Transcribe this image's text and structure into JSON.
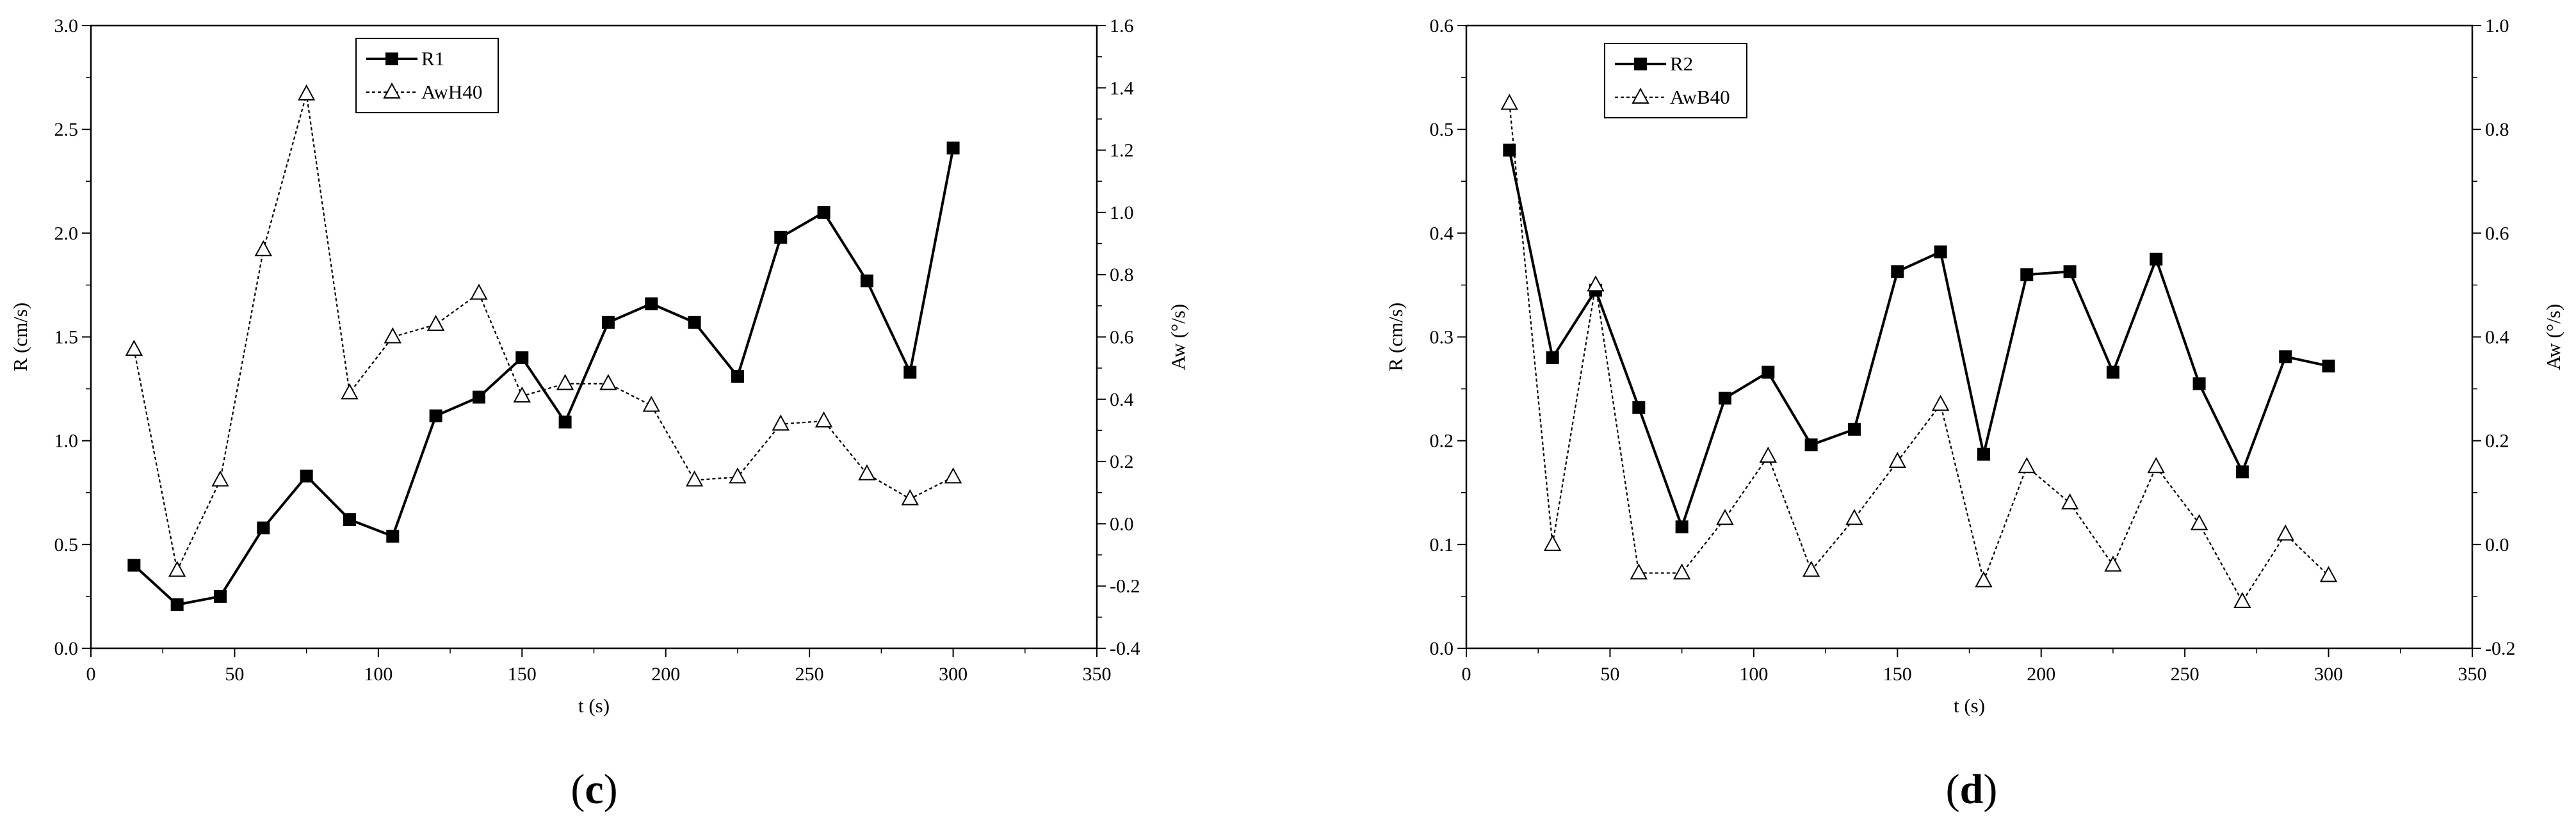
{
  "chart_data": [
    {
      "type": "line",
      "panel_label": "c",
      "xlabel": "t (s)",
      "ylabel": "R  (cm/s)",
      "y2label": "Aw (°/s)",
      "xlim": [
        0,
        350
      ],
      "ylim": [
        0,
        3.0
      ],
      "y2lim": [
        -0.4,
        1.6
      ],
      "x_ticks": [
        "0",
        "50",
        "100",
        "150",
        "200",
        "250",
        "300",
        "350"
      ],
      "y_ticks": [
        "0.0",
        "0.5",
        "1.0",
        "1.5",
        "2.0",
        "2.5",
        "3.0"
      ],
      "y2_ticks": [
        "-0.4",
        "-0.2",
        "0.0",
        "0.2",
        "0.4",
        "0.6",
        "0.8",
        "1.0",
        "1.2",
        "1.4",
        "1.6"
      ],
      "legend_position": "top-left",
      "series": [
        {
          "name": "R1",
          "axis": "left",
          "marker": "filled-square",
          "line": "solid",
          "x": [
            15,
            30,
            45,
            60,
            75,
            90,
            105,
            120,
            135,
            150,
            165,
            180,
            195,
            210,
            225,
            240,
            255,
            270,
            285,
            300
          ],
          "y": [
            0.4,
            0.21,
            0.25,
            0.58,
            0.83,
            0.62,
            0.54,
            1.12,
            1.21,
            1.4,
            1.09,
            1.57,
            1.66,
            1.57,
            1.31,
            1.98,
            2.1,
            1.77,
            1.33,
            2.41
          ]
        },
        {
          "name": "AwH40",
          "axis": "right",
          "marker": "open-triangle",
          "line": "dashed",
          "x": [
            15,
            30,
            45,
            60,
            75,
            90,
            105,
            120,
            135,
            150,
            165,
            180,
            195,
            210,
            225,
            240,
            255,
            270,
            285,
            300
          ],
          "y": [
            0.56,
            -0.15,
            0.14,
            0.88,
            1.38,
            0.42,
            0.6,
            0.64,
            0.74,
            0.41,
            0.45,
            0.45,
            0.38,
            0.14,
            0.15,
            0.32,
            0.33,
            0.16,
            0.08,
            0.15
          ]
        }
      ]
    },
    {
      "type": "line",
      "panel_label": "d",
      "xlabel": "t (s)",
      "ylabel": "R  (cm/s)",
      "y2label": "Aw (°/s)",
      "xlim": [
        0,
        350
      ],
      "ylim": [
        0,
        0.6
      ],
      "y2lim": [
        -0.2,
        1.0
      ],
      "x_ticks": [
        "0",
        "50",
        "100",
        "150",
        "200",
        "250",
        "300",
        "350"
      ],
      "y_ticks": [
        "0.0",
        "0.1",
        "0.2",
        "0.3",
        "0.4",
        "0.5",
        "0.6"
      ],
      "y2_ticks": [
        "-0.2",
        "0.0",
        "0.2",
        "0.4",
        "0.6",
        "0.8",
        "1.0"
      ],
      "legend_position": "top-left",
      "series": [
        {
          "name": "R2",
          "axis": "left",
          "marker": "filled-square",
          "line": "solid",
          "x": [
            15,
            30,
            45,
            60,
            75,
            90,
            105,
            120,
            135,
            150,
            165,
            180,
            195,
            210,
            225,
            240,
            255,
            270,
            285,
            300
          ],
          "y": [
            0.48,
            0.28,
            0.345,
            0.232,
            0.117,
            0.241,
            0.266,
            0.196,
            0.211,
            0.363,
            0.382,
            0.187,
            0.36,
            0.363,
            0.266,
            0.375,
            0.255,
            0.17,
            0.281,
            0.272
          ]
        },
        {
          "name": "AwB40",
          "axis": "right",
          "marker": "open-triangle",
          "line": "dashed",
          "x": [
            15,
            30,
            45,
            60,
            75,
            90,
            105,
            120,
            135,
            150,
            165,
            180,
            195,
            210,
            225,
            240,
            255,
            270,
            285,
            300
          ],
          "y": [
            0.85,
            0.0,
            0.5,
            -0.055,
            -0.055,
            0.05,
            0.17,
            -0.05,
            0.05,
            0.16,
            0.27,
            -0.07,
            0.15,
            0.08,
            -0.04,
            0.15,
            0.04,
            -0.11,
            0.02,
            -0.06
          ]
        }
      ]
    }
  ]
}
